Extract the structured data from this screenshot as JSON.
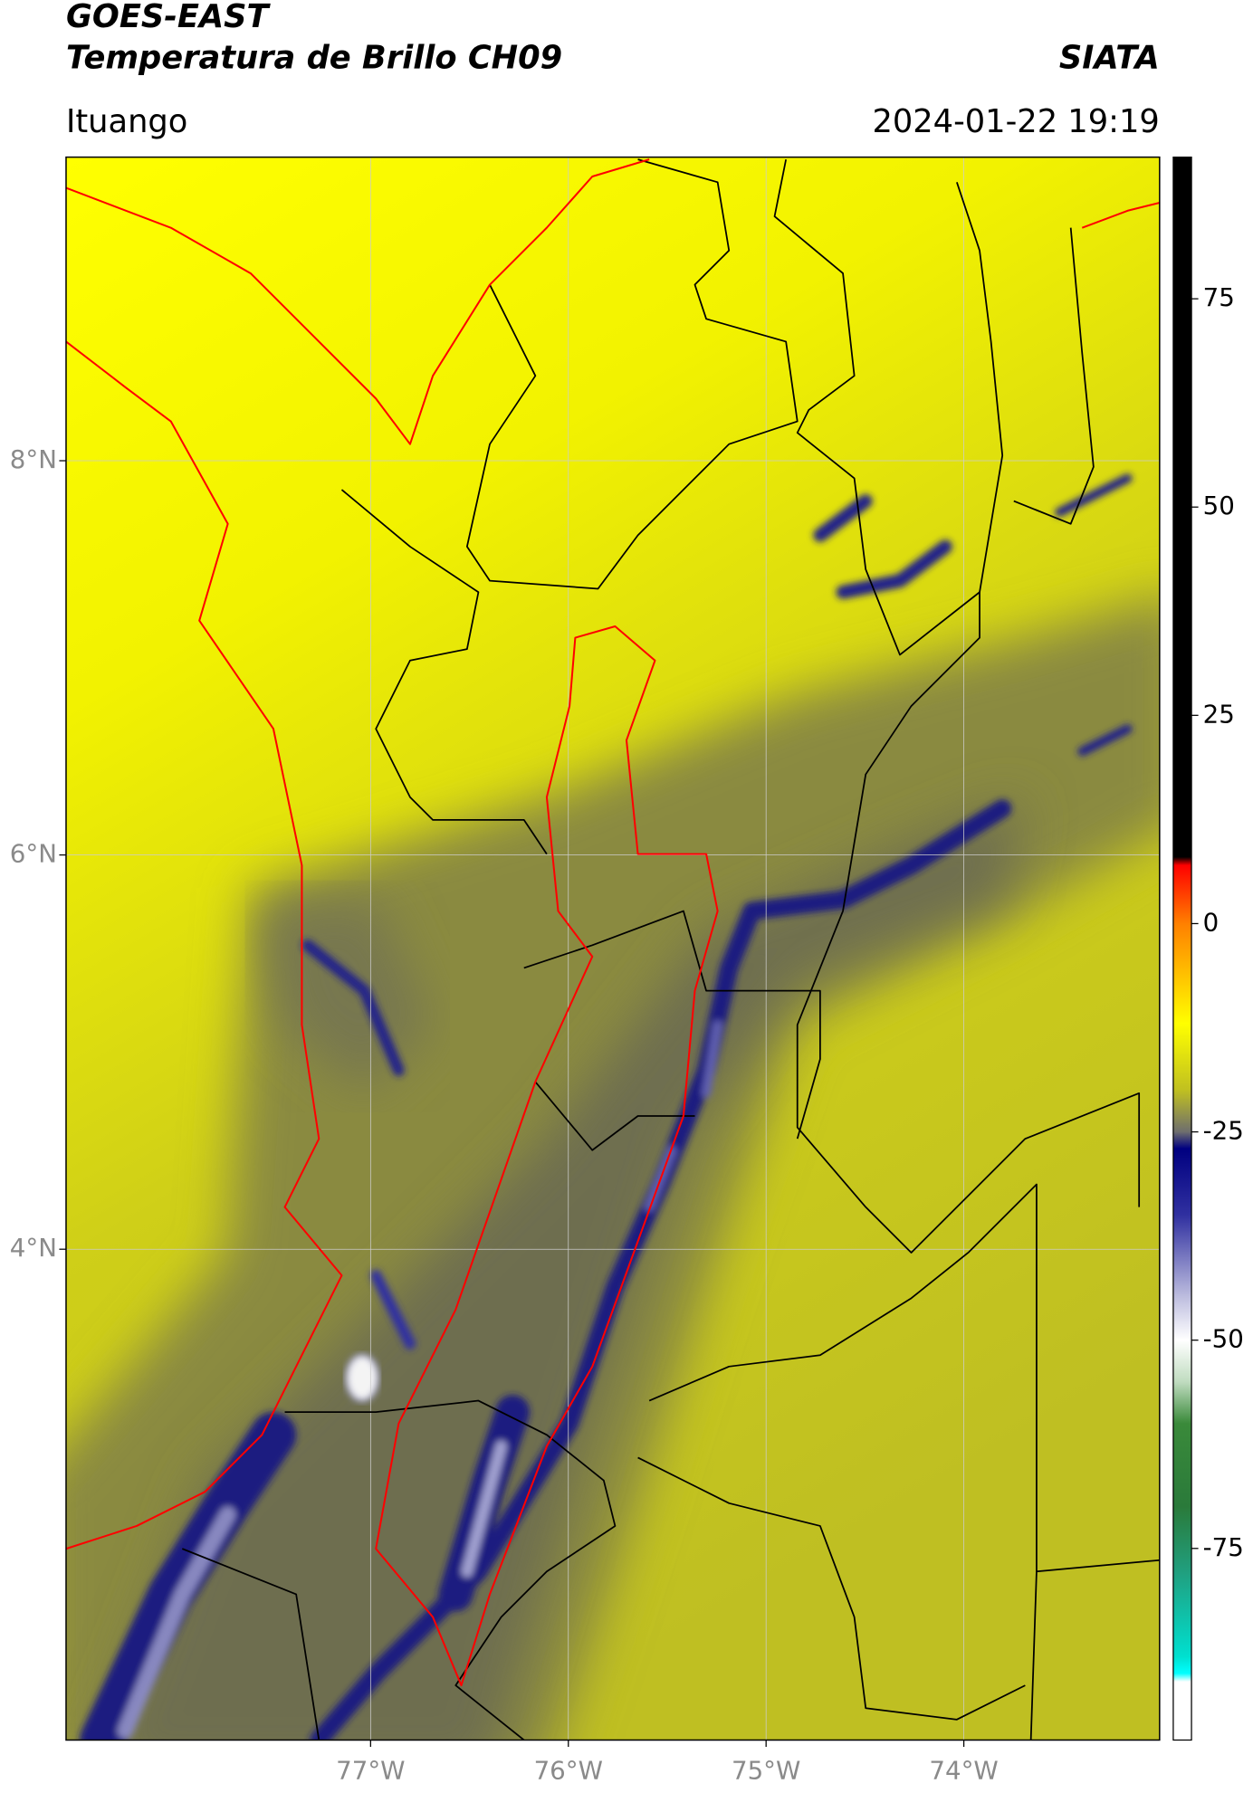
{
  "chart_data": {
    "type": "map",
    "title": "GOES-EAST",
    "subtitle": "Temperatura de Brillo CH09",
    "source": "SIATA",
    "location": "Ituango",
    "timestamp": "2024-01-22 19:19",
    "xlim": [
      -78.54,
      -73.01
    ],
    "ylim": [
      1.51,
      9.54
    ],
    "xticks": [
      {
        "value": -77,
        "label": "77°W"
      },
      {
        "value": -76,
        "label": "76°W"
      },
      {
        "value": -75,
        "label": "75°W"
      },
      {
        "value": -74,
        "label": "74°W"
      }
    ],
    "yticks": [
      {
        "value": 8,
        "label": "8°N"
      },
      {
        "value": 6,
        "label": "6°N"
      },
      {
        "value": 4,
        "label": "4°N"
      }
    ],
    "grid": true,
    "colorbar": {
      "lim": [
        -98,
        92
      ],
      "ticks": [
        75,
        50,
        25,
        0,
        -25,
        -50,
        -75
      ],
      "stops": [
        {
          "value": 92,
          "color": "#000000"
        },
        {
          "value": 8,
          "color": "#000000"
        },
        {
          "value": 7,
          "color": "#ff0000"
        },
        {
          "value": 0,
          "color": "#ff8000"
        },
        {
          "value": -12,
          "color": "#ffff00"
        },
        {
          "value": -20,
          "color": "#c0c020"
        },
        {
          "value": -25,
          "color": "#6e6e6e"
        },
        {
          "value": -27,
          "color": "#000080"
        },
        {
          "value": -35,
          "color": "#3030a0"
        },
        {
          "value": -45,
          "color": "#c0c0e0"
        },
        {
          "value": -50,
          "color": "#ffffff"
        },
        {
          "value": -55,
          "color": "#c0dcc0"
        },
        {
          "value": -60,
          "color": "#3a8a3a"
        },
        {
          "value": -70,
          "color": "#2a7a3a"
        },
        {
          "value": -78,
          "color": "#20a080"
        },
        {
          "value": -88,
          "color": "#00e0d0"
        },
        {
          "value": -90,
          "color": "#00ffff"
        },
        {
          "value": -91,
          "color": "#ffffff"
        },
        {
          "value": -98,
          "color": "#ffffff"
        }
      ]
    }
  }
}
